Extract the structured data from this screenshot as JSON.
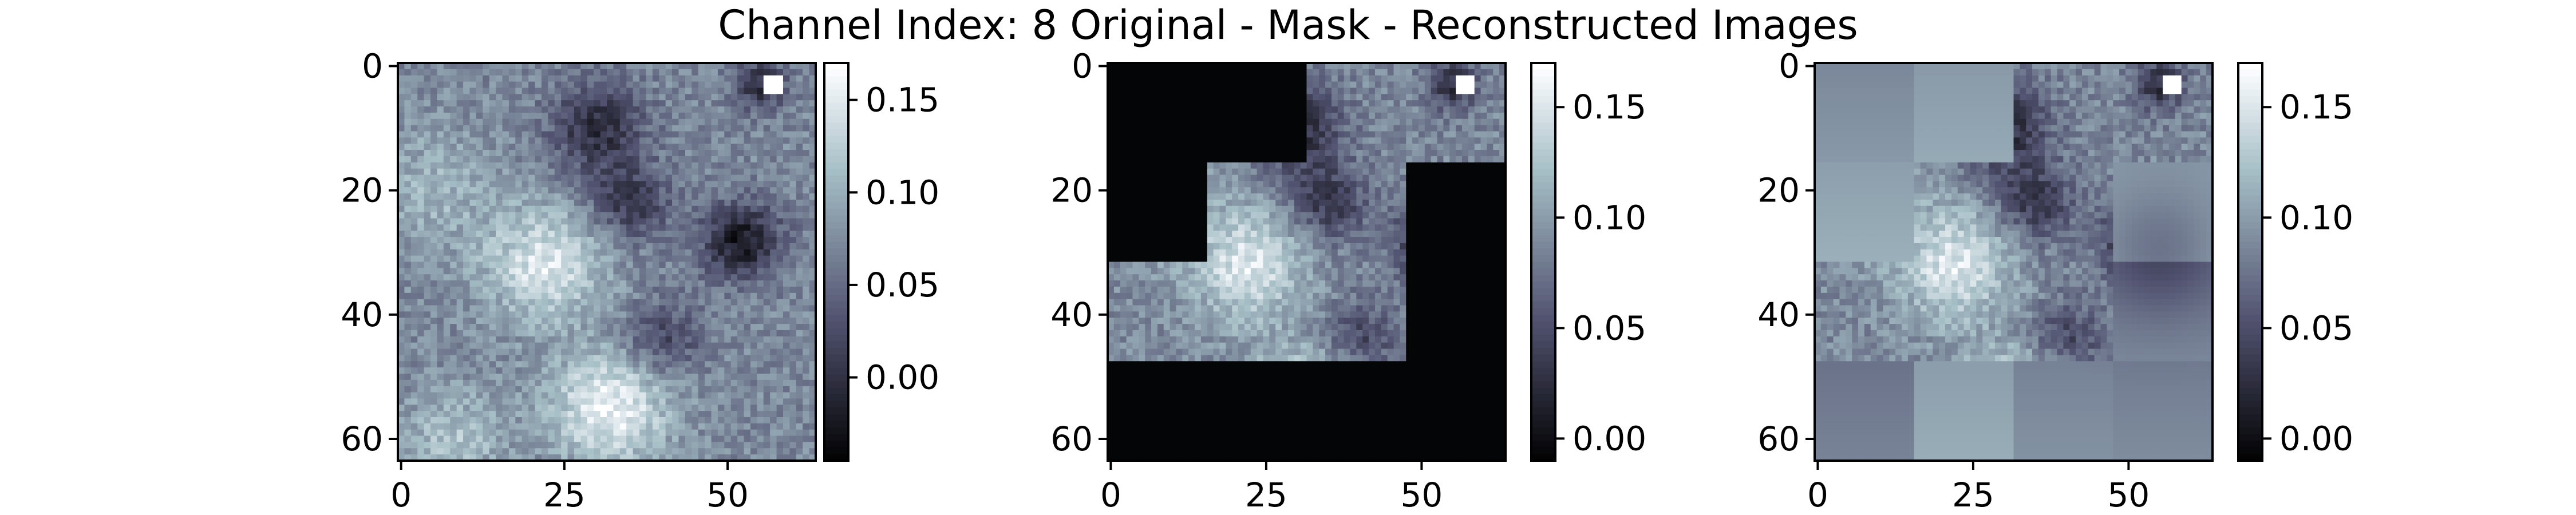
{
  "title": "Channel Index: 8 Original - Mask - Reconstructed Images",
  "chart_data": [
    {
      "type": "heatmap",
      "panel": "original",
      "grid_size": 64,
      "colormap": "bone",
      "xlim": [
        -0.5,
        63.5
      ],
      "ylim": [
        63.5,
        -0.5
      ],
      "x_ticks": [
        {
          "value": 0,
          "label": "0"
        },
        {
          "value": 25,
          "label": "25"
        },
        {
          "value": 50,
          "label": "50"
        }
      ],
      "y_ticks": [
        {
          "value": 0,
          "label": "0"
        },
        {
          "value": 20,
          "label": "20"
        },
        {
          "value": 40,
          "label": "40"
        },
        {
          "value": 60,
          "label": "60"
        }
      ],
      "colorbar": {
        "min": -0.045,
        "max": 0.17,
        "ticks": [
          {
            "value": 0.0,
            "label": "0.00"
          },
          {
            "value": 0.05,
            "label": "0.05"
          },
          {
            "value": 0.1,
            "label": "0.10"
          },
          {
            "value": 0.15,
            "label": "0.15"
          }
        ]
      }
    },
    {
      "type": "heatmap",
      "panel": "masked",
      "grid_size": 64,
      "colormap": "bone",
      "xlim": [
        -0.5,
        63.5
      ],
      "ylim": [
        63.5,
        -0.5
      ],
      "visible_patches": [
        {
          "rows": [
            0,
            15
          ],
          "cols": [
            32,
            63
          ]
        },
        {
          "rows": [
            16,
            31
          ],
          "cols": [
            16,
            47
          ]
        },
        {
          "rows": [
            32,
            47
          ],
          "cols": [
            0,
            47
          ]
        }
      ],
      "x_ticks": [
        {
          "value": 0,
          "label": "0"
        },
        {
          "value": 25,
          "label": "25"
        },
        {
          "value": 50,
          "label": "50"
        }
      ],
      "y_ticks": [
        {
          "value": 0,
          "label": "0"
        },
        {
          "value": 20,
          "label": "20"
        },
        {
          "value": 40,
          "label": "40"
        },
        {
          "value": 60,
          "label": "60"
        }
      ],
      "colorbar": {
        "min": -0.01,
        "max": 0.17,
        "ticks": [
          {
            "value": 0.0,
            "label": "0.00"
          },
          {
            "value": 0.05,
            "label": "0.05"
          },
          {
            "value": 0.1,
            "label": "0.10"
          },
          {
            "value": 0.15,
            "label": "0.15"
          }
        ]
      }
    },
    {
      "type": "heatmap",
      "panel": "reconstructed",
      "grid_size": 64,
      "colormap": "bone",
      "xlim": [
        -0.5,
        63.5
      ],
      "ylim": [
        63.5,
        -0.5
      ],
      "x_ticks": [
        {
          "value": 0,
          "label": "0"
        },
        {
          "value": 25,
          "label": "25"
        },
        {
          "value": 50,
          "label": "50"
        }
      ],
      "y_ticks": [
        {
          "value": 0,
          "label": "0"
        },
        {
          "value": 20,
          "label": "20"
        },
        {
          "value": 40,
          "label": "40"
        },
        {
          "value": 60,
          "label": "60"
        }
      ],
      "colorbar": {
        "min": -0.01,
        "max": 0.17,
        "ticks": [
          {
            "value": 0.0,
            "label": "0.00"
          },
          {
            "value": 0.05,
            "label": "0.05"
          },
          {
            "value": 0.1,
            "label": "0.10"
          },
          {
            "value": 0.15,
            "label": "0.15"
          }
        ]
      }
    }
  ]
}
